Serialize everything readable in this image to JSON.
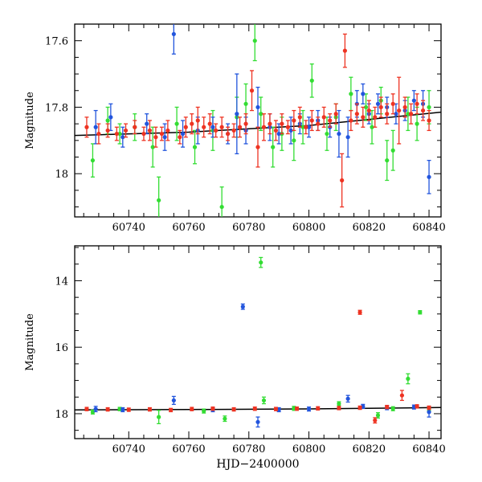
{
  "chart_data": [
    {
      "type": "scatter",
      "panel": "top",
      "xlabel": "",
      "ylabel": "Magnitude",
      "xlim": [
        60722,
        60844
      ],
      "ylim": [
        17.55,
        18.13
      ],
      "y_inverted": true,
      "x_ticks": [
        60740,
        60760,
        60780,
        60800,
        60820,
        60840
      ],
      "y_ticks": [
        17.6,
        17.8,
        18
      ],
      "y_tick_labels": [
        "17.6",
        "17.8",
        "18"
      ],
      "fit_line": {
        "color": "#000000",
        "points": [
          [
            60722,
            17.885
          ],
          [
            60760,
            17.875
          ],
          [
            60800,
            17.855
          ],
          [
            60844,
            17.815
          ]
        ]
      },
      "error_bars": true,
      "series": [
        {
          "color": "#33dd33",
          "points": [
            [
              60728,
              17.96,
              0.05
            ],
            [
              60733,
              17.84,
              0.04
            ],
            [
              60737,
              17.88,
              0.03
            ],
            [
              60742,
              17.86,
              0.04
            ],
            [
              60748,
              17.92,
              0.06
            ],
            [
              60750,
              18.08,
              0.07
            ],
            [
              60756,
              17.85,
              0.05
            ],
            [
              60762,
              17.92,
              0.05
            ],
            [
              60768,
              17.87,
              0.06
            ],
            [
              60771,
              18.1,
              0.06
            ],
            [
              60776,
              17.83,
              0.06
            ],
            [
              60779,
              17.79,
              0.06
            ],
            [
              60782,
              17.6,
              0.06
            ],
            [
              60784,
              17.82,
              0.05
            ],
            [
              60788,
              17.92,
              0.06
            ],
            [
              60791,
              17.88,
              0.05
            ],
            [
              60795,
              17.9,
              0.06
            ],
            [
              60798,
              17.86,
              0.05
            ],
            [
              60801,
              17.72,
              0.05
            ],
            [
              60806,
              17.88,
              0.05
            ],
            [
              60809,
              17.83,
              0.04
            ],
            [
              60814,
              17.76,
              0.05
            ],
            [
              60819,
              17.8,
              0.04
            ],
            [
              60821,
              17.86,
              0.05
            ],
            [
              60824,
              17.78,
              0.04
            ],
            [
              60826,
              17.96,
              0.06
            ],
            [
              60828,
              17.93,
              0.06
            ],
            [
              60833,
              17.82,
              0.05
            ],
            [
              60836,
              17.85,
              0.05
            ],
            [
              60840,
              17.8,
              0.05
            ]
          ]
        },
        {
          "color": "#2255dd",
          "points": [
            [
              60729,
              17.86,
              0.05
            ],
            [
              60734,
              17.83,
              0.04
            ],
            [
              60738,
              17.89,
              0.03
            ],
            [
              60746,
              17.85,
              0.03
            ],
            [
              60752,
              17.89,
              0.04
            ],
            [
              60755,
              17.58,
              0.06
            ],
            [
              60758,
              17.88,
              0.04
            ],
            [
              60763,
              17.87,
              0.04
            ],
            [
              60768,
              17.86,
              0.03
            ],
            [
              60773,
              17.88,
              0.03
            ],
            [
              60776,
              17.82,
              0.12
            ],
            [
              60779,
              17.87,
              0.04
            ],
            [
              60783,
              17.8,
              0.06
            ],
            [
              60787,
              17.86,
              0.04
            ],
            [
              60790,
              17.88,
              0.03
            ],
            [
              60794,
              17.87,
              0.04
            ],
            [
              60797,
              17.85,
              0.03
            ],
            [
              60800,
              17.86,
              0.03
            ],
            [
              60803,
              17.84,
              0.03
            ],
            [
              60807,
              17.86,
              0.03
            ],
            [
              60810,
              17.88,
              0.07
            ],
            [
              60813,
              17.89,
              0.06
            ],
            [
              60816,
              17.79,
              0.04
            ],
            [
              60818,
              17.76,
              0.03
            ],
            [
              60820,
              17.82,
              0.03
            ],
            [
              60823,
              17.79,
              0.03
            ],
            [
              60826,
              17.8,
              0.03
            ],
            [
              60829,
              17.82,
              0.03
            ],
            [
              60832,
              17.81,
              0.03
            ],
            [
              60835,
              17.78,
              0.03
            ],
            [
              60838,
              17.79,
              0.04
            ],
            [
              60840,
              18.01,
              0.05
            ]
          ]
        },
        {
          "color": "#ee3322",
          "points": [
            [
              60726,
              17.86,
              0.03
            ],
            [
              60730,
              17.88,
              0.03
            ],
            [
              60733,
              17.87,
              0.02
            ],
            [
              60736,
              17.88,
              0.02
            ],
            [
              60739,
              17.87,
              0.02
            ],
            [
              60742,
              17.86,
              0.02
            ],
            [
              60745,
              17.88,
              0.02
            ],
            [
              60747,
              17.87,
              0.03
            ],
            [
              60749,
              17.89,
              0.03
            ],
            [
              60751,
              17.88,
              0.02
            ],
            [
              60753,
              17.87,
              0.03
            ],
            [
              60757,
              17.89,
              0.02
            ],
            [
              60759,
              17.86,
              0.03
            ],
            [
              60761,
              17.85,
              0.03
            ],
            [
              60763,
              17.84,
              0.04
            ],
            [
              60765,
              17.86,
              0.03
            ],
            [
              60767,
              17.85,
              0.03
            ],
            [
              60769,
              17.87,
              0.02
            ],
            [
              60771,
              17.86,
              0.03
            ],
            [
              60773,
              17.88,
              0.02
            ],
            [
              60775,
              17.87,
              0.02
            ],
            [
              60777,
              17.86,
              0.03
            ],
            [
              60779,
              17.85,
              0.03
            ],
            [
              60781,
              17.75,
              0.06
            ],
            [
              60783,
              17.92,
              0.06
            ],
            [
              60785,
              17.86,
              0.04
            ],
            [
              60787,
              17.85,
              0.03
            ],
            [
              60789,
              17.87,
              0.03
            ],
            [
              60791,
              17.85,
              0.03
            ],
            [
              60793,
              17.86,
              0.02
            ],
            [
              60795,
              17.84,
              0.03
            ],
            [
              60797,
              17.83,
              0.03
            ],
            [
              60799,
              17.86,
              0.02
            ],
            [
              60801,
              17.84,
              0.03
            ],
            [
              60803,
              17.85,
              0.02
            ],
            [
              60805,
              17.83,
              0.03
            ],
            [
              60807,
              17.84,
              0.02
            ],
            [
              60809,
              17.82,
              0.03
            ],
            [
              60811,
              18.02,
              0.08
            ],
            [
              60812,
              17.63,
              0.05
            ],
            [
              60814,
              17.84,
              0.03
            ],
            [
              60816,
              17.82,
              0.03
            ],
            [
              60818,
              17.83,
              0.03
            ],
            [
              60820,
              17.81,
              0.03
            ],
            [
              60822,
              17.83,
              0.03
            ],
            [
              60824,
              17.8,
              0.03
            ],
            [
              60826,
              17.82,
              0.03
            ],
            [
              60828,
              17.79,
              0.03
            ],
            [
              60830,
              17.81,
              0.1
            ],
            [
              60832,
              17.8,
              0.03
            ],
            [
              60834,
              17.82,
              0.03
            ],
            [
              60836,
              17.79,
              0.03
            ],
            [
              60838,
              17.81,
              0.03
            ],
            [
              60840,
              17.84,
              0.03
            ]
          ]
        }
      ]
    },
    {
      "type": "scatter",
      "panel": "bottom",
      "xlabel": "HJD−2400000",
      "ylabel": "Magnitude",
      "xlim": [
        60722,
        60844
      ],
      "ylim": [
        12.95,
        18.75
      ],
      "y_inverted": true,
      "x_ticks": [
        60740,
        60760,
        60780,
        60800,
        60820,
        60840
      ],
      "y_ticks": [
        14,
        16,
        18
      ],
      "y_tick_labels": [
        "14",
        "16",
        "18"
      ],
      "fit_line": {
        "color": "#000000",
        "points": [
          [
            60722,
            17.885
          ],
          [
            60760,
            17.875
          ],
          [
            60800,
            17.855
          ],
          [
            60844,
            17.815
          ]
        ]
      },
      "error_bars": true,
      "series": [
        {
          "color": "#33dd33",
          "points": [
            [
              60728,
              17.95,
              0.06
            ],
            [
              60737,
              17.86,
              0.05
            ],
            [
              60750,
              18.1,
              0.2
            ],
            [
              60765,
              17.92,
              0.06
            ],
            [
              60772,
              18.15,
              0.08
            ],
            [
              60784,
              13.45,
              0.15
            ],
            [
              60785,
              17.6,
              0.1
            ],
            [
              60795,
              17.84,
              0.06
            ],
            [
              60810,
              17.7,
              0.06
            ],
            [
              60823,
              18.05,
              0.08
            ],
            [
              60828,
              17.85,
              0.06
            ],
            [
              60833,
              16.95,
              0.15
            ],
            [
              60837,
              14.95,
              0.05
            ],
            [
              60840,
              17.85,
              0.06
            ]
          ]
        },
        {
          "color": "#2255dd",
          "points": [
            [
              60729,
              17.86,
              0.08
            ],
            [
              60738,
              17.88,
              0.06
            ],
            [
              60755,
              17.6,
              0.12
            ],
            [
              60768,
              17.88,
              0.06
            ],
            [
              60778,
              14.78,
              0.08
            ],
            [
              60783,
              18.25,
              0.15
            ],
            [
              60790,
              17.88,
              0.06
            ],
            [
              60800,
              17.86,
              0.06
            ],
            [
              60813,
              17.55,
              0.1
            ],
            [
              60818,
              17.78,
              0.06
            ],
            [
              60826,
              17.82,
              0.06
            ],
            [
              60835,
              17.8,
              0.06
            ],
            [
              60840,
              17.95,
              0.15
            ]
          ]
        },
        {
          "color": "#ee3322",
          "points": [
            [
              60726,
              17.86,
              0.05
            ],
            [
              60733,
              17.87,
              0.05
            ],
            [
              60740,
              17.88,
              0.05
            ],
            [
              60747,
              17.87,
              0.05
            ],
            [
              60754,
              17.89,
              0.05
            ],
            [
              60761,
              17.86,
              0.05
            ],
            [
              60768,
              17.85,
              0.05
            ],
            [
              60775,
              17.87,
              0.05
            ],
            [
              60782,
              17.85,
              0.05
            ],
            [
              60789,
              17.86,
              0.05
            ],
            [
              60796,
              17.85,
              0.05
            ],
            [
              60803,
              17.84,
              0.05
            ],
            [
              60810,
              17.83,
              0.05
            ],
            [
              60817,
              14.95,
              0.06
            ],
            [
              60817,
              17.82,
              0.05
            ],
            [
              60822,
              18.2,
              0.08
            ],
            [
              60826,
              17.8,
              0.05
            ],
            [
              60831,
              17.45,
              0.15
            ],
            [
              60836,
              17.78,
              0.05
            ],
            [
              60840,
              17.82,
              0.05
            ]
          ]
        }
      ]
    }
  ]
}
